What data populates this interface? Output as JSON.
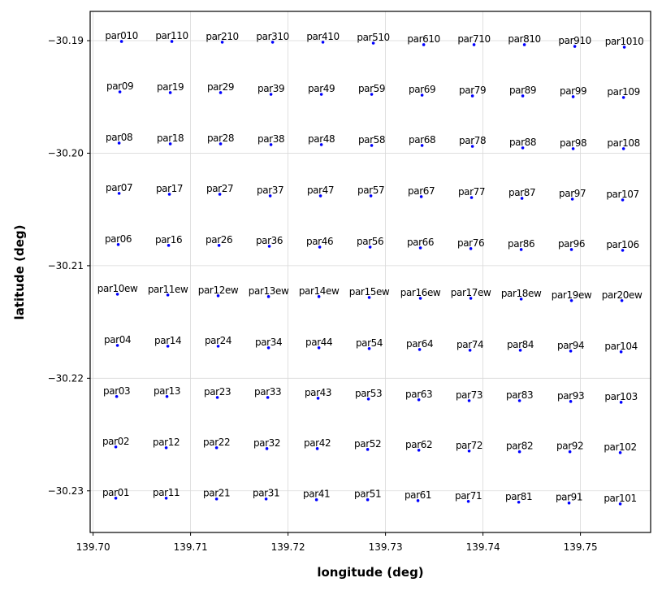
{
  "chart_data": {
    "type": "scatter",
    "xlabel": "longitude (deg)",
    "ylabel": "latitude (deg)",
    "color": "blue",
    "grid": true,
    "xlim": [
      139.6997,
      139.7572
    ],
    "ylim": [
      -30.2337,
      -30.1874
    ],
    "xticks": [
      {
        "value": 139.7,
        "label": "139.70"
      },
      139.71,
      139.72,
      139.73,
      139.74,
      139.75
    ],
    "yticks": [
      {
        "value": -30.19,
        "label": "−30.19"
      },
      {
        "value": -30.2,
        "label": "−30.20"
      },
      {
        "value": -30.21,
        "label": "−30.21"
      },
      {
        "value": -30.22,
        "label": "−30.22"
      },
      {
        "value": -30.23,
        "label": "−30.23"
      }
    ],
    "labels": [
      "par010",
      "par110",
      "par210",
      "par310",
      "par410",
      "par510",
      "par610",
      "par710",
      "par810",
      "par910",
      "par1010",
      "par09",
      "par19",
      "par29",
      "par39",
      "par49",
      "par59",
      "par69",
      "par79",
      "par89",
      "par99",
      "par109",
      "par08",
      "par18",
      "par28",
      "par38",
      "par48",
      "par58",
      "par68",
      "par78",
      "par88",
      "par98",
      "par108",
      "par07",
      "par17",
      "par27",
      "par37",
      "par47",
      "par57",
      "par67",
      "par77",
      "par87",
      "par97",
      "par107",
      "par06",
      "par16",
      "par26",
      "par36",
      "par46",
      "par56",
      "par66",
      "par76",
      "par86",
      "par96",
      "par106",
      "par10ew",
      "par11ew",
      "par12ew",
      "par13ew",
      "par14ew",
      "par15ew",
      "par16ew",
      "par17ew",
      "par18ew",
      "par19ew",
      "par20ew",
      "par04",
      "par14",
      "par24",
      "par34",
      "par44",
      "par54",
      "par64",
      "par74",
      "par84",
      "par94",
      "par104",
      "par03",
      "par13",
      "par23",
      "par33",
      "par43",
      "par53",
      "par63",
      "par73",
      "par83",
      "par93",
      "par103",
      "par02",
      "par12",
      "par22",
      "par32",
      "par42",
      "par52",
      "par62",
      "par72",
      "par82",
      "par92",
      "par102",
      "par01",
      "par11",
      "par21",
      "par31",
      "par41",
      "par51",
      "par61",
      "par71",
      "par81",
      "par91",
      "par101"
    ],
    "x": [
      139.70292,
      139.70808,
      139.71325,
      139.71842,
      139.72358,
      139.72875,
      139.73392,
      139.73908,
      139.74425,
      139.74942,
      139.7545,
      139.70275,
      139.70792,
      139.71308,
      139.71825,
      139.72342,
      139.72858,
      139.73375,
      139.73892,
      139.74408,
      139.74925,
      139.75442,
      139.70267,
      139.70792,
      139.71308,
      139.71825,
      139.72342,
      139.72858,
      139.73375,
      139.73892,
      139.74408,
      139.74925,
      139.75442,
      139.70267,
      139.70783,
      139.713,
      139.71817,
      139.72333,
      139.7285,
      139.73367,
      139.73883,
      139.744,
      139.74917,
      139.75433,
      139.70258,
      139.70775,
      139.71292,
      139.71808,
      139.72325,
      139.72842,
      139.73358,
      139.73875,
      139.74392,
      139.74908,
      139.75433,
      139.7025,
      139.70767,
      139.71283,
      139.718,
      139.72317,
      139.72833,
      139.73358,
      139.73875,
      139.74392,
      139.74908,
      139.75425,
      139.7025,
      139.70767,
      139.71283,
      139.718,
      139.72317,
      139.72833,
      139.7335,
      139.73867,
      139.74383,
      139.749,
      139.75417,
      139.70242,
      139.70758,
      139.71275,
      139.71792,
      139.72308,
      139.72825,
      139.73342,
      139.73858,
      139.74375,
      139.749,
      139.75417,
      139.70233,
      139.7075,
      139.71267,
      139.71783,
      139.723,
      139.72817,
      139.73342,
      139.73858,
      139.74375,
      139.74892,
      139.75408,
      139.70233,
      139.7075,
      139.71267,
      139.71775,
      139.72292,
      139.72817,
      139.73333,
      139.7385,
      139.74367,
      139.74883,
      139.75408
    ],
    "y": [
      -30.19007,
      -30.19007,
      -30.19014,
      -30.19014,
      -30.19014,
      -30.19022,
      -30.19036,
      -30.19036,
      -30.19036,
      -30.19051,
      -30.19058,
      -30.19455,
      -30.19462,
      -30.19462,
      -30.19477,
      -30.19477,
      -30.19477,
      -30.19484,
      -30.19491,
      -30.19491,
      -30.19498,
      -30.19505,
      -30.1991,
      -30.19917,
      -30.19917,
      -30.19924,
      -30.19924,
      -30.19931,
      -30.19931,
      -30.19939,
      -30.19953,
      -30.1996,
      -30.1996,
      -30.20357,
      -30.20365,
      -30.20365,
      -30.20379,
      -30.20379,
      -30.20379,
      -30.20386,
      -30.20394,
      -30.20401,
      -30.20408,
      -30.20415,
      -30.20812,
      -30.20819,
      -30.20819,
      -30.20827,
      -30.20834,
      -30.20834,
      -30.20841,
      -30.20848,
      -30.20856,
      -30.20856,
      -30.20863,
      -30.21253,
      -30.2126,
      -30.21267,
      -30.21274,
      -30.21274,
      -30.21282,
      -30.21289,
      -30.21289,
      -30.21296,
      -30.2131,
      -30.2131,
      -30.21708,
      -30.21715,
      -30.21715,
      -30.21729,
      -30.21729,
      -30.21736,
      -30.21744,
      -30.21751,
      -30.21751,
      -30.21758,
      -30.21765,
      -30.22162,
      -30.22162,
      -30.2217,
      -30.2217,
      -30.22177,
      -30.22184,
      -30.22191,
      -30.22199,
      -30.22199,
      -30.22206,
      -30.22213,
      -30.2261,
      -30.22617,
      -30.22617,
      -30.22625,
      -30.22625,
      -30.22632,
      -30.22639,
      -30.22646,
      -30.22653,
      -30.22653,
      -30.22661,
      -30.23065,
      -30.23065,
      -30.23072,
      -30.23072,
      -30.23079,
      -30.23079,
      -30.23087,
      -30.23094,
      -30.23101,
      -30.23108,
      -30.23116
    ]
  }
}
